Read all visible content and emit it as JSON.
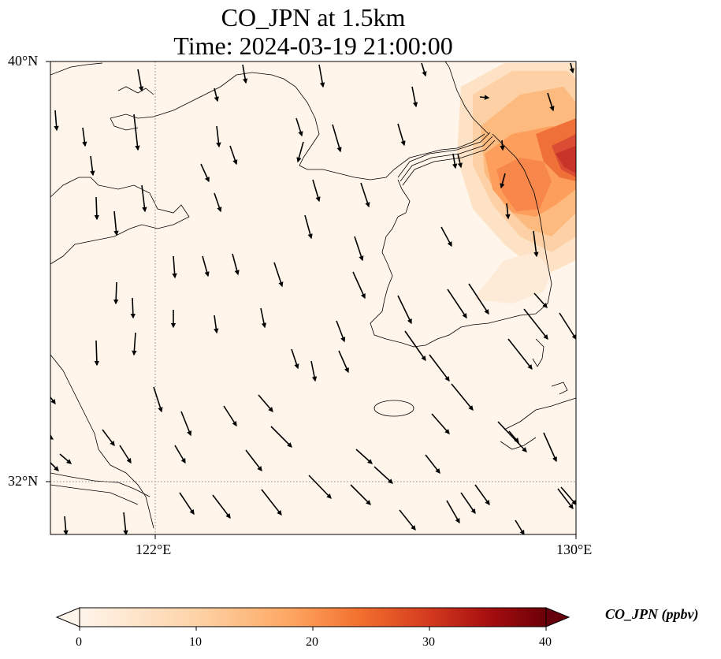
{
  "title": {
    "line1": "CO_JPN at 1.5km",
    "line2": "Time: 2024-03-19 21:00:00"
  },
  "axes": {
    "lat_labels": [
      "40°N",
      "32°N"
    ],
    "lon_labels": [
      "122°E",
      "130°E"
    ],
    "extent": {
      "lon": [
        120,
        130
      ],
      "lat": [
        31,
        40
      ]
    },
    "gridlines": {
      "lon": [
        122
      ],
      "lat": [
        32
      ],
      "style": "dotted"
    }
  },
  "colorbar": {
    "label": "CO_JPN (ppbv)",
    "ticks": [
      "0",
      "10",
      "20",
      "30",
      "40"
    ],
    "range": [
      0,
      40
    ],
    "extend": "both",
    "colors": [
      "#fff5eb",
      "#fdd8b3",
      "#fdae6b",
      "#f16913",
      "#d94801",
      "#a50f15",
      "#67000d"
    ]
  },
  "plume": {
    "description_region": "east Korea / East Sea",
    "max_value": 30
  },
  "wind_vectors": {
    "direction": "mostly from north-northwest"
  }
}
